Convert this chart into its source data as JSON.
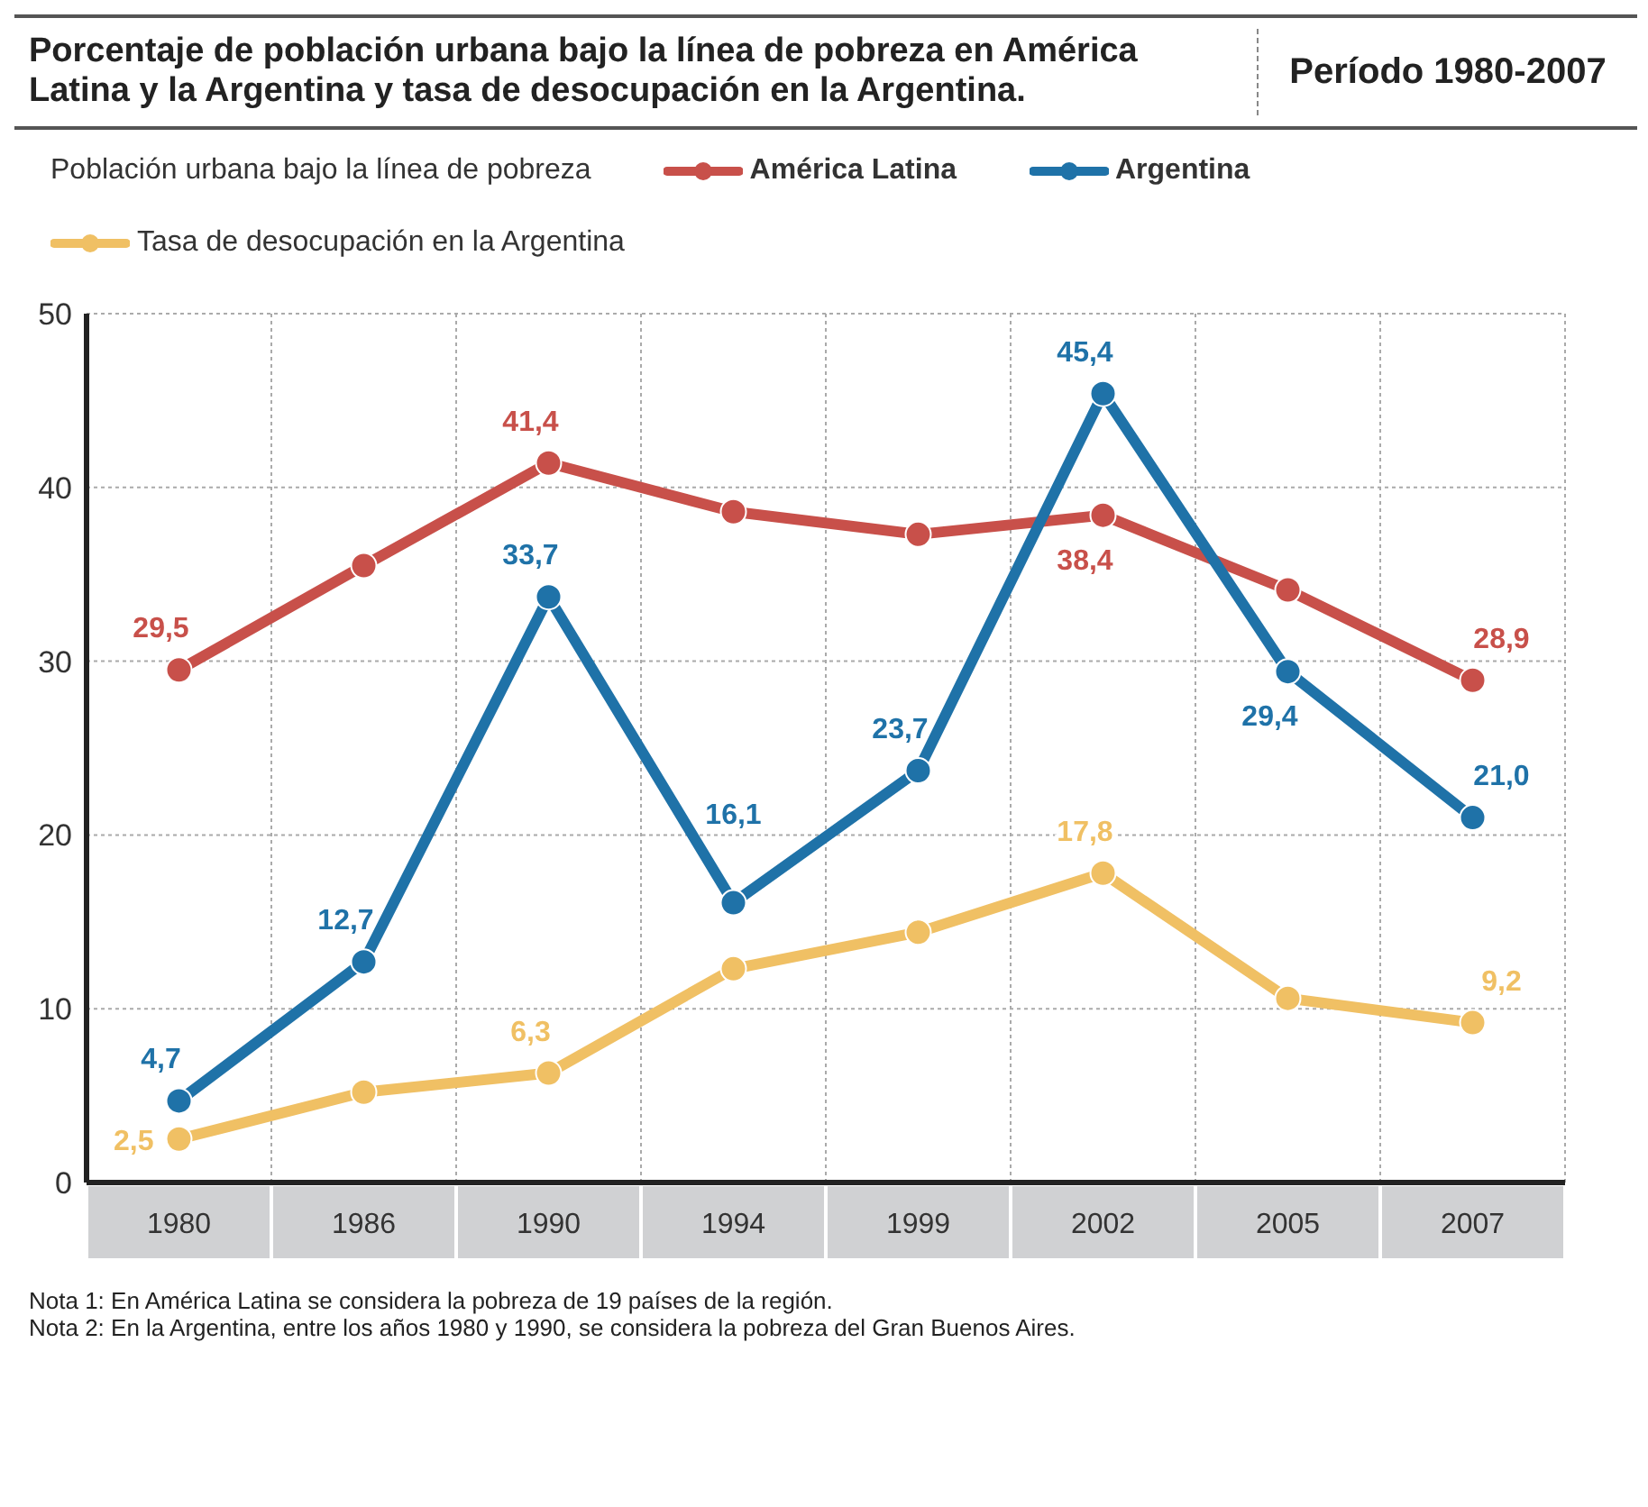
{
  "chart_data": {
    "type": "line",
    "title": "Porcentaje de población urbana bajo la línea de  pobreza en América Latina y la Argentina y tasa de desocupación en la Argentina.",
    "subtitle": "Período 1980-2007",
    "legend_title": "Población urbana bajo la línea de pobreza",
    "categories": [
      "1980",
      "1986",
      "1990",
      "1994",
      "1999",
      "2002",
      "2005",
      "2007"
    ],
    "series": [
      {
        "name": "América Latina",
        "color": "#c8504a",
        "values": [
          29.5,
          35.5,
          41.4,
          38.6,
          37.3,
          38.4,
          34.1,
          28.9
        ],
        "value_labels": [
          "29,5",
          null,
          "41,4",
          null,
          null,
          "38,4",
          null,
          "28,9"
        ]
      },
      {
        "name": "Argentina",
        "color": "#1f72a8",
        "values": [
          4.7,
          12.7,
          33.7,
          16.1,
          23.7,
          45.4,
          29.4,
          21.0
        ],
        "value_labels": [
          "4,7",
          "12,7",
          "33,7",
          "16,1",
          "23,7",
          "45,4",
          "29,4",
          "21,0"
        ]
      },
      {
        "name": "Tasa de desocupación en la Argentina",
        "color": "#f0c064",
        "values": [
          2.5,
          5.2,
          6.3,
          12.3,
          14.4,
          17.8,
          10.6,
          9.2
        ],
        "value_labels": [
          "2,5",
          null,
          "6,3",
          null,
          null,
          "17,8",
          null,
          "9,2"
        ]
      }
    ],
    "ylim": [
      0,
      50
    ],
    "yticks": [
      0,
      10,
      20,
      30,
      40,
      50
    ],
    "grid": true,
    "legend": "top",
    "marker": "circle",
    "line_style": "solid",
    "annotations": [
      "Nota 1: En América Latina se considera la pobreza de 19 países de la región.",
      "Nota 2: En la Argentina, entre los años 1980 y 1990, se considera la pobreza del Gran Buenos Aires."
    ]
  }
}
